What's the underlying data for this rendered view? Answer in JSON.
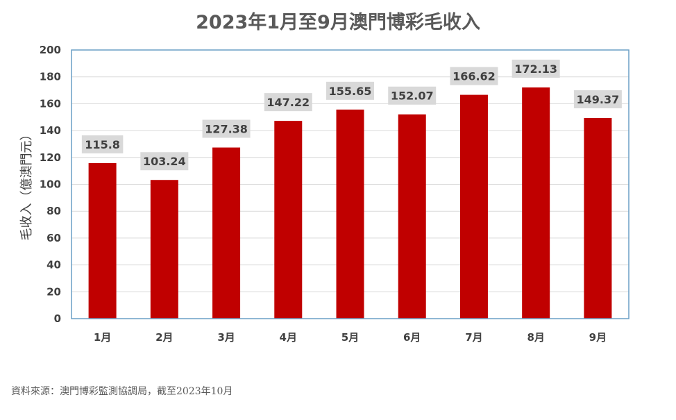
{
  "chart_data": {
    "type": "bar",
    "title": "2023年1月至9月澳門博彩毛收入",
    "ylabel": "毛收入（億澳門元）",
    "xlabel": "",
    "categories": [
      "1月",
      "2月",
      "3月",
      "4月",
      "5月",
      "6月",
      "7月",
      "8月",
      "9月"
    ],
    "values": [
      115.8,
      103.24,
      127.38,
      147.22,
      155.65,
      152.07,
      166.62,
      172.13,
      149.37
    ],
    "data_labels": [
      "115.8",
      "103.24",
      "127.38",
      "147.22",
      "155.65",
      "152.07",
      "166.62",
      "172.13",
      "149.37"
    ],
    "ylim": [
      0,
      200
    ],
    "yticks": [
      "0",
      "20",
      "40",
      "60",
      "80",
      "100",
      "120",
      "140",
      "160",
      "180",
      "200"
    ],
    "grid": true,
    "colors": {
      "bar": "#C00000",
      "label_bg": "#D9D9D9",
      "frame": "#6A9FC5",
      "grid": "#D9D9D9"
    }
  },
  "source": "資料來源：澳門博彩監測協調局，截至2023年10月"
}
